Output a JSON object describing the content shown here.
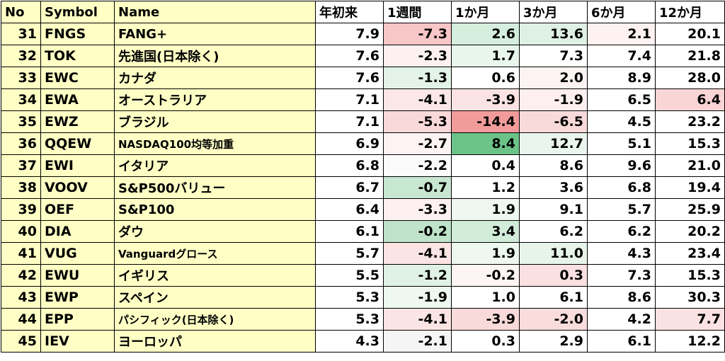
{
  "headers": [
    "No",
    "Symbol",
    "Name",
    "年初来",
    "1週間",
    "1か月",
    "3か月",
    "6か月",
    "12か月"
  ],
  "rows": [
    {
      "no": "31",
      "symbol": "FNGS",
      "name": "FANG+",
      "v": [
        "7.9",
        "-7.3",
        "2.6",
        "13.6",
        "2.1",
        "20.1"
      ],
      "bg": [
        "#ffffff",
        "#f7c6c6",
        "#d6eedd",
        "#dff1e4",
        "#fdf1f1",
        "#ffffff"
      ]
    },
    {
      "no": "32",
      "symbol": "TOK",
      "name": "先進国(日本除く)",
      "v": [
        "7.6",
        "-2.3",
        "1.7",
        "7.3",
        "7.4",
        "21.8"
      ],
      "bg": [
        "#ffffff",
        "#fcf0f0",
        "#e9f6ec",
        "#ffffff",
        "#ffffff",
        "#ffffff"
      ]
    },
    {
      "no": "33",
      "symbol": "EWC",
      "name": "カナダ",
      "v": [
        "7.6",
        "-1.3",
        "0.6",
        "2.0",
        "8.9",
        "28.0"
      ],
      "bg": [
        "#ffffff",
        "#e3f3e7",
        "#ffffff",
        "#fdf3f3",
        "#ffffff",
        "#ffffff"
      ]
    },
    {
      "no": "34",
      "symbol": "EWA",
      "name": "オーストラリア",
      "v": [
        "7.1",
        "-4.1",
        "-3.9",
        "-1.9",
        "6.5",
        "6.4"
      ],
      "bg": [
        "#ffffff",
        "#fbe7e7",
        "#fbe3e3",
        "#fdefef",
        "#ffffff",
        "#f9d5d5"
      ]
    },
    {
      "no": "35",
      "symbol": "EWZ",
      "name": "ブラジル",
      "v": [
        "7.1",
        "-5.3",
        "-14.4",
        "-6.5",
        "4.5",
        "23.2"
      ],
      "bg": [
        "#ffffff",
        "#f9d9d9",
        "#f29b9b",
        "#f9dada",
        "#ffffff",
        "#ffffff"
      ]
    },
    {
      "no": "36",
      "symbol": "QQEW",
      "name": "NASDAQ100均等加重",
      "v": [
        "6.9",
        "-2.7",
        "8.4",
        "12.7",
        "5.1",
        "15.3"
      ],
      "bg": [
        "#ffffff",
        "#fdf3f3",
        "#6bc387",
        "#eaf6ed",
        "#ffffff",
        "#ffffff"
      ]
    },
    {
      "no": "37",
      "symbol": "EWI",
      "name": "イタリア",
      "v": [
        "6.8",
        "-2.2",
        "0.4",
        "8.6",
        "9.6",
        "21.0"
      ],
      "bg": [
        "#ffffff",
        "#fbfbfb",
        "#ffffff",
        "#ffffff",
        "#ffffff",
        "#ffffff"
      ]
    },
    {
      "no": "38",
      "symbol": "VOOV",
      "name": "S&P500バリュー",
      "v": [
        "6.7",
        "-0.7",
        "1.2",
        "3.6",
        "6.8",
        "19.4"
      ],
      "bg": [
        "#ffffff",
        "#c8e7d1",
        "#ffffff",
        "#ffffff",
        "#ffffff",
        "#ffffff"
      ]
    },
    {
      "no": "39",
      "symbol": "OEF",
      "name": "S&P100",
      "v": [
        "6.4",
        "-3.3",
        "1.9",
        "9.1",
        "5.7",
        "25.9"
      ],
      "bg": [
        "#ffffff",
        "#fdf0f0",
        "#eef8f1",
        "#ffffff",
        "#ffffff",
        "#ffffff"
      ]
    },
    {
      "no": "40",
      "symbol": "DIA",
      "name": "ダウ",
      "v": [
        "6.1",
        "-0.2",
        "3.4",
        "6.2",
        "6.2",
        "20.2"
      ],
      "bg": [
        "#ffffff",
        "#bfe3c9",
        "#d2ecda",
        "#ffffff",
        "#ffffff",
        "#ffffff"
      ]
    },
    {
      "no": "41",
      "symbol": "VUG",
      "name": "Vanguardグロース",
      "v": [
        "5.7",
        "-4.1",
        "1.9",
        "11.0",
        "4.3",
        "23.4"
      ],
      "bg": [
        "#ffffff",
        "#fbe4e4",
        "#eef8f1",
        "#e6f4ea",
        "#ffffff",
        "#ffffff"
      ]
    },
    {
      "no": "42",
      "symbol": "EWU",
      "name": "イギリス",
      "v": [
        "5.5",
        "-1.2",
        "-0.2",
        "0.3",
        "7.3",
        "15.3"
      ],
      "bg": [
        "#ffffff",
        "#e0f2e5",
        "#fdf4f4",
        "#fae0e0",
        "#ffffff",
        "#ffffff"
      ]
    },
    {
      "no": "43",
      "symbol": "EWP",
      "name": "スペイン",
      "v": [
        "5.3",
        "-1.9",
        "1.0",
        "6.1",
        "8.6",
        "30.3"
      ],
      "bg": [
        "#ffffff",
        "#eef8f1",
        "#ffffff",
        "#ffffff",
        "#ffffff",
        "#ffffff"
      ]
    },
    {
      "no": "44",
      "symbol": "EPP",
      "name": "パシフィック(日本除く)",
      "v": [
        "5.3",
        "-4.1",
        "-3.9",
        "-2.0",
        "4.2",
        "7.7"
      ],
      "bg": [
        "#ffffff",
        "#fbe4e4",
        "#f9dada",
        "#f9dcdc",
        "#ffffff",
        "#fbe2e2"
      ]
    },
    {
      "no": "45",
      "symbol": "IEV",
      "name": "ヨーロッパ",
      "v": [
        "4.3",
        "-2.1",
        "0.3",
        "2.9",
        "6.1",
        "12.2"
      ],
      "bg": [
        "#ffffff",
        "#f5f5f5",
        "#ffffff",
        "#ffffff",
        "#ffffff",
        "#ffffff"
      ]
    }
  ]
}
